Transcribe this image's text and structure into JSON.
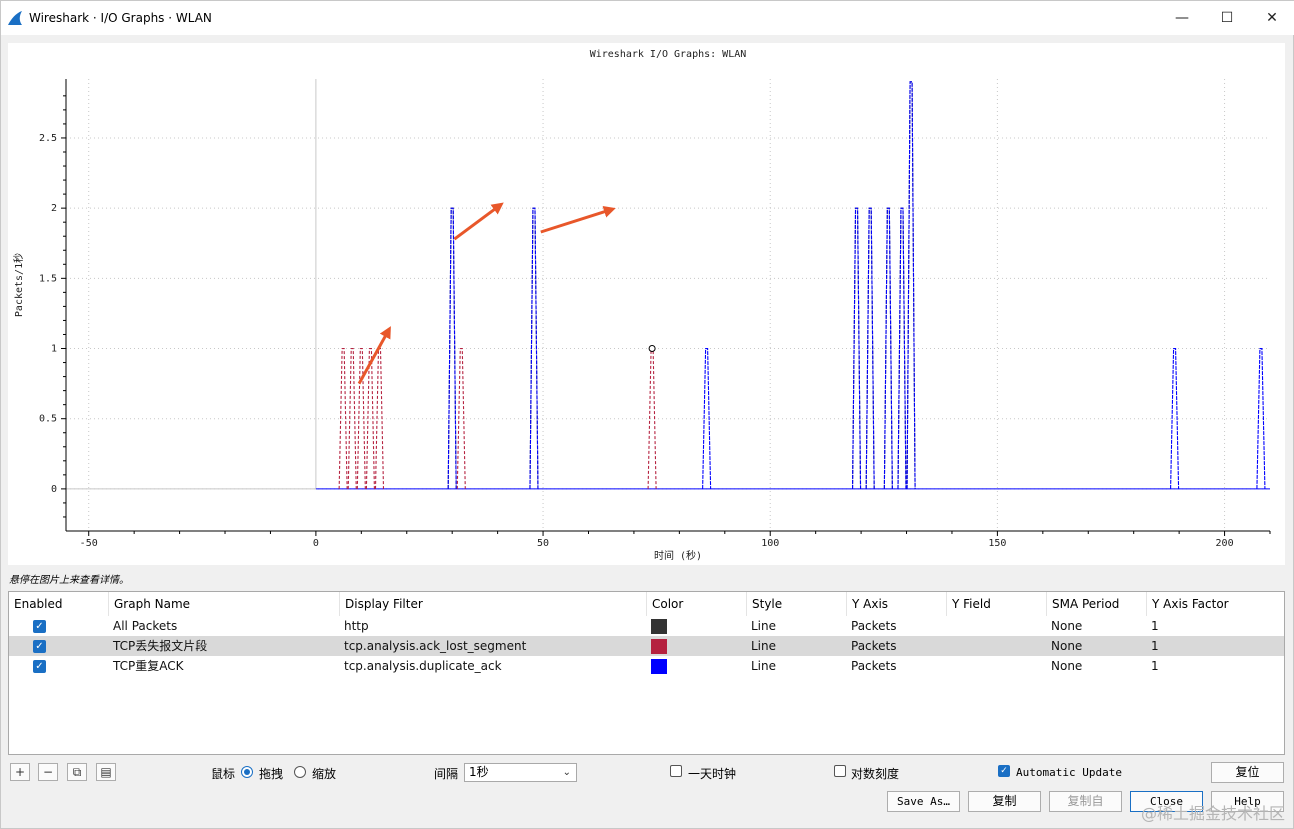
{
  "window": {
    "title": "Wireshark · I/O Graphs · WLAN",
    "controls": {
      "minimize": "—",
      "maximize": "☐",
      "close": "✕"
    }
  },
  "colors": {
    "accent": "#1a6fc4",
    "all_packets": "#333333",
    "lost_segment": "#b5213f",
    "dup_ack": "#0000ff",
    "arrow": "#e8572a"
  },
  "chart_data": {
    "type": "line",
    "title": "Wireshark I/O Graphs: WLAN",
    "xlabel": "时间 (秒)",
    "ylabel": "Packets/1秒",
    "xlim": [
      -55,
      210
    ],
    "ylim": [
      -0.3,
      2.92
    ],
    "xticks": [
      -50,
      0,
      50,
      100,
      150,
      200
    ],
    "yticks": [
      0,
      0.5,
      1,
      1.5,
      2,
      2.5
    ],
    "ytick_labels": [
      "0",
      "0.5",
      "1",
      "1.5",
      "2",
      "2.5"
    ],
    "grid": true,
    "series": [
      {
        "name": "All Packets",
        "color": "#333333",
        "points": [
          [
            30,
            2
          ],
          [
            48,
            2
          ],
          [
            119,
            2
          ],
          [
            122,
            2
          ],
          [
            126,
            2
          ],
          [
            129,
            2
          ],
          [
            131,
            2.9
          ]
        ]
      },
      {
        "name": "TCP丢失报文片段",
        "color": "#b5213f",
        "points": [
          [
            6,
            1
          ],
          [
            8,
            1
          ],
          [
            10,
            1
          ],
          [
            12,
            1
          ],
          [
            14,
            1
          ],
          [
            32,
            1
          ],
          [
            74,
            1
          ]
        ]
      },
      {
        "name": "TCP重复ACK",
        "color": "#0000ff",
        "points": [
          [
            30,
            2
          ],
          [
            48,
            2
          ],
          [
            86,
            1
          ],
          [
            119,
            2
          ],
          [
            122,
            2
          ],
          [
            126,
            2
          ],
          [
            129,
            2
          ],
          [
            131,
            2.9
          ],
          [
            189,
            1
          ],
          [
            208,
            1
          ]
        ]
      }
    ],
    "marker": [
      74,
      1
    ],
    "annotation_arrows": [
      {
        "from": [
          9.5,
          0.75
        ],
        "to": [
          16,
          1.13
        ]
      },
      {
        "from": [
          30.5,
          1.78
        ],
        "to": [
          40.5,
          2.02
        ]
      },
      {
        "from": [
          49.5,
          1.83
        ],
        "to": [
          65,
          1.99
        ]
      }
    ]
  },
  "hint": "悬停在图片上来查看详情。",
  "table": {
    "headers": [
      "Enabled",
      "Graph Name",
      "Display Filter",
      "Color",
      "Style",
      "Y Axis",
      "Y Field",
      "SMA Period",
      "Y Axis Factor"
    ],
    "rows": [
      {
        "name": "All Packets",
        "filter": "http",
        "color": "#333333",
        "style": "Line",
        "yaxis": "Packets",
        "yfield": "",
        "sma": "None",
        "factor": "1",
        "enabled": true
      },
      {
        "name": "TCP丢失报文片段",
        "filter": "tcp.analysis.ack_lost_segment",
        "color": "#b5213f",
        "style": "Line",
        "yaxis": "Packets",
        "yfield": "",
        "sma": "None",
        "factor": "1",
        "enabled": true
      },
      {
        "name": "TCP重复ACK",
        "filter": "tcp.analysis.duplicate_ack",
        "color": "#0000ff",
        "style": "Line",
        "yaxis": "Packets",
        "yfield": "",
        "sma": "None",
        "factor": "1",
        "enabled": true
      }
    ]
  },
  "bottom": {
    "add_icon": "+",
    "remove_icon": "−",
    "copy_icon": "⧉",
    "clear_icon": "▤",
    "mouse_label": "鼠标",
    "drag_label": "拖拽",
    "zoom_label": "缩放",
    "interval_label": "间隔",
    "interval_value": "1秒",
    "time_of_day_label": "一天时钟",
    "log_scale_label": "对数刻度",
    "auto_update_label": "Automatic Update",
    "reset_label": "复位"
  },
  "buttons": {
    "save_as": "Save As…",
    "copy": "复制",
    "copy_from": "复制自",
    "close": "Close",
    "help": "Help"
  },
  "watermark": "@稀土掘金技术社区"
}
